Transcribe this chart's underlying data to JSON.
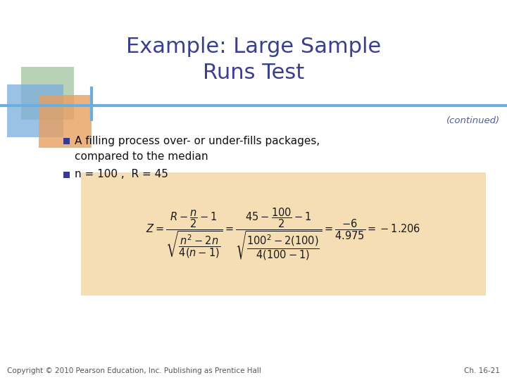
{
  "title": "Example: Large Sample\nRuns Test",
  "title_color": "#3B3F8C",
  "title_fontsize": 22,
  "continued_text": "(continued)",
  "continued_color": "#5A5A9A",
  "bullet1_line1": "A filling process over- or under-fills packages,",
  "bullet1_line2": "compared to the median",
  "bullet2": "n = 100 ,  R = 45",
  "bullet_color": "#111111",
  "bullet_square_color": "#3A3A8C",
  "formula_box_color": "#F5DEB3",
  "copyright": "Copyright © 2010 Pearson Education, Inc. Publishing as Prentice Hall",
  "chapter": "Ch. 16-21",
  "footer_color": "#555555",
  "footer_fontsize": 7.5,
  "bg_color": "#FFFFFF",
  "divider_color": "#6CAEDE",
  "sq_green_color": "#9FC49F",
  "sq_blue_color": "#7AAEDD",
  "sq_orange_color": "#E8A060"
}
